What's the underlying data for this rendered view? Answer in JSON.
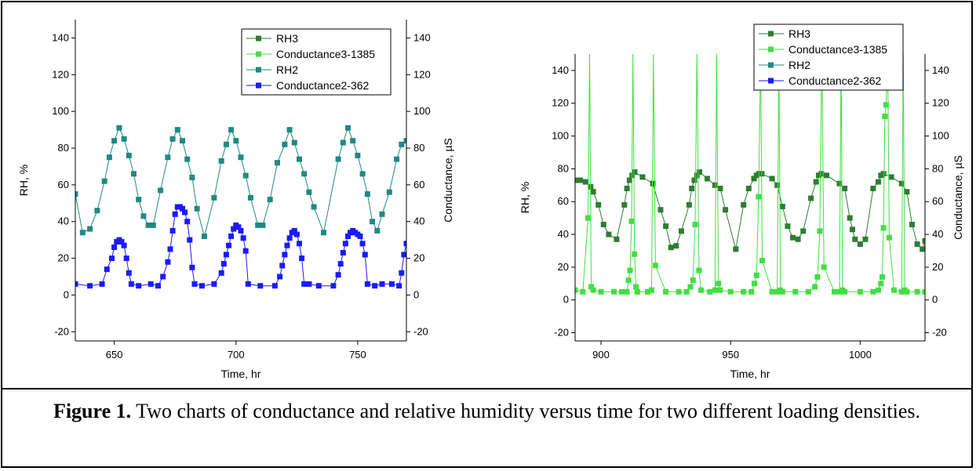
{
  "figure": {
    "caption_bold": "Figure 1.",
    "caption_text": " Two charts of conductance and relative humidity versus time for two different loading densities."
  },
  "chart_data": [
    {
      "type": "line",
      "xlabel": "Time, hr",
      "ylabel_left": "RH, %",
      "ylabel_right": "Conductance, µS",
      "xlim": [
        634,
        770
      ],
      "ylim": [
        -25,
        150
      ],
      "xticks": [
        650,
        700,
        750
      ],
      "yticks": [
        -20,
        0,
        20,
        40,
        60,
        80,
        100,
        120,
        140
      ],
      "legend_position": "top-center",
      "legend": [
        {
          "name": "RH3",
          "color": "#2e7d32"
        },
        {
          "name": "Conductance3-1385",
          "color": "#44dd44"
        },
        {
          "name": "RH2",
          "color": "#1f8a80"
        },
        {
          "name": "Conductance2-362",
          "color": "#1a1aff"
        }
      ],
      "series": [
        {
          "name": "RH2",
          "color": "#1f8a80",
          "x": [
            634,
            637,
            640,
            643,
            646,
            648,
            650,
            652,
            654,
            656,
            658,
            660,
            662,
            664,
            666,
            669,
            672,
            674,
            676,
            678,
            680,
            682,
            684,
            687,
            691,
            694,
            696,
            698,
            700,
            702,
            704,
            706,
            709,
            711,
            714,
            717,
            720,
            722,
            724,
            726,
            728,
            730,
            732,
            736,
            742,
            744,
            746,
            748,
            750,
            752,
            754,
            756,
            758,
            760,
            763,
            766,
            768,
            770
          ],
          "y": [
            55,
            34,
            36,
            46,
            62,
            75,
            84,
            91,
            85,
            76,
            66,
            52,
            43,
            38,
            38,
            57,
            75,
            85,
            90,
            84,
            74,
            64,
            47,
            32,
            53,
            73,
            82,
            90,
            84,
            75,
            65,
            53,
            38,
            38,
            52,
            72,
            82,
            90,
            83,
            74,
            66,
            56,
            48,
            34,
            74,
            83,
            91,
            84,
            76,
            66,
            55,
            40,
            35,
            44,
            56,
            74,
            82,
            84
          ]
        },
        {
          "name": "Conductance2-362",
          "color": "#1a1aff",
          "x": [
            634,
            640,
            645,
            647,
            649,
            650,
            651,
            652,
            653,
            654,
            655,
            656,
            657,
            660,
            665,
            668,
            670,
            672,
            673,
            674,
            675,
            676,
            677,
            678,
            679,
            680,
            681,
            682,
            683,
            686,
            691,
            694,
            695,
            696,
            697,
            698,
            699,
            700,
            701,
            702,
            703,
            704,
            705,
            710,
            716,
            718,
            719,
            720,
            721,
            722,
            723,
            724,
            725,
            726,
            727,
            728,
            730,
            734,
            740,
            742,
            743,
            744,
            745,
            746,
            747,
            748,
            749,
            750,
            751,
            752,
            753,
            754,
            757,
            760,
            764,
            767,
            768,
            769,
            770
          ],
          "y": [
            6,
            5,
            6,
            14,
            20,
            26,
            29,
            30,
            29,
            27,
            20,
            12,
            6,
            5,
            6,
            5,
            10,
            18,
            25,
            35,
            44,
            48,
            48,
            47,
            45,
            40,
            30,
            15,
            6,
            5,
            6,
            12,
            17,
            22,
            27,
            32,
            36,
            38,
            37,
            35,
            31,
            24,
            6,
            5,
            5,
            10,
            16,
            22,
            27,
            31,
            34,
            35,
            33,
            28,
            20,
            6,
            6,
            5,
            5,
            11,
            17,
            23,
            28,
            32,
            34,
            35,
            34,
            33,
            32,
            28,
            22,
            6,
            5,
            6,
            6,
            5,
            12,
            22,
            28
          ]
        }
      ]
    },
    {
      "type": "line",
      "xlabel": "Time, hr",
      "ylabel_left": "RH, %",
      "ylabel_right": "Conductance, µS",
      "xlim": [
        890,
        1025
      ],
      "ylim": [
        -25,
        150
      ],
      "xticks": [
        900,
        950,
        1000
      ],
      "yticks": [
        -20,
        0,
        20,
        40,
        60,
        80,
        100,
        120,
        140
      ],
      "legend_position": "top-right",
      "legend": [
        {
          "name": "RH3",
          "color": "#2e7d32"
        },
        {
          "name": "Conductance3-1385",
          "color": "#44dd44"
        },
        {
          "name": "RH2",
          "color": "#1f8a80"
        },
        {
          "name": "Conductance2-362",
          "color": "#1a1aff"
        }
      ],
      "series": [
        {
          "name": "RH3",
          "color": "#2e7d32",
          "x": [
            890,
            892,
            894,
            896,
            897,
            899,
            901,
            903,
            906,
            909,
            910,
            911,
            912,
            913,
            916,
            920,
            923,
            925,
            927,
            929,
            931,
            934,
            935,
            936,
            937,
            938,
            941,
            944,
            946,
            948,
            952,
            955,
            957,
            959,
            960,
            961,
            962,
            966,
            968,
            970,
            972,
            974,
            976,
            978,
            981,
            983,
            984,
            985,
            987,
            992,
            994,
            996,
            997,
            998,
            1000,
            1002,
            1005,
            1007,
            1008,
            1009,
            1012,
            1016,
            1018,
            1020,
            1022,
            1024,
            1025
          ],
          "y": [
            73,
            73,
            72,
            69,
            66,
            58,
            46,
            40,
            37,
            58,
            68,
            73,
            76,
            78,
            75,
            71,
            55,
            45,
            32,
            33,
            42,
            58,
            68,
            73,
            76,
            78,
            74,
            70,
            68,
            55,
            31,
            58,
            68,
            74,
            76,
            77,
            77,
            74,
            70,
            57,
            45,
            38,
            37,
            42,
            62,
            72,
            76,
            77,
            76,
            71,
            68,
            50,
            43,
            37,
            34,
            37,
            68,
            72,
            76,
            77,
            75,
            71,
            66,
            46,
            34,
            31,
            36
          ]
        },
        {
          "name": "Conductance3-1385",
          "color": "#44dd44",
          "x": [
            890,
            893,
            895,
            895.6,
            896.2,
            897,
            900,
            905,
            908,
            910,
            910.6,
            911.2,
            911.8,
            912.3,
            912.9,
            913.5,
            914,
            918,
            919.5,
            920.2,
            921,
            925,
            930,
            933,
            934.5,
            935.5,
            936.3,
            937,
            937.8,
            938.6,
            942,
            944,
            944.6,
            945.3,
            946,
            950,
            955,
            958,
            959.2,
            960,
            960.8,
            961.6,
            962.2,
            966,
            968,
            968.6,
            969.2,
            970,
            975,
            980,
            982.5,
            983.5,
            984.4,
            985.2,
            986,
            990,
            992,
            992.6,
            993.2,
            994,
            1000,
            1005,
            1007,
            1008,
            1008.5,
            1009,
            1009.5,
            1010,
            1010.6,
            1011.2,
            1013,
            1016,
            1016.6,
            1017.2,
            1018,
            1022,
            1025
          ],
          "y": [
            6,
            5,
            50,
            150,
            8,
            6,
            5,
            5,
            5,
            5,
            12,
            18,
            48,
            150,
            28,
            8,
            5,
            5,
            6,
            150,
            21,
            5,
            5,
            5,
            8,
            12,
            46,
            150,
            18,
            6,
            5,
            6,
            150,
            10,
            6,
            5,
            5,
            5,
            10,
            15,
            63,
            150,
            24,
            5,
            5,
            150,
            6,
            5,
            5,
            5,
            8,
            14,
            42,
            150,
            20,
            5,
            5,
            150,
            6,
            5,
            5,
            5,
            6,
            10,
            14,
            44,
            112,
            119,
            150,
            38,
            6,
            5,
            150,
            6,
            5,
            5,
            5
          ]
        }
      ]
    }
  ]
}
